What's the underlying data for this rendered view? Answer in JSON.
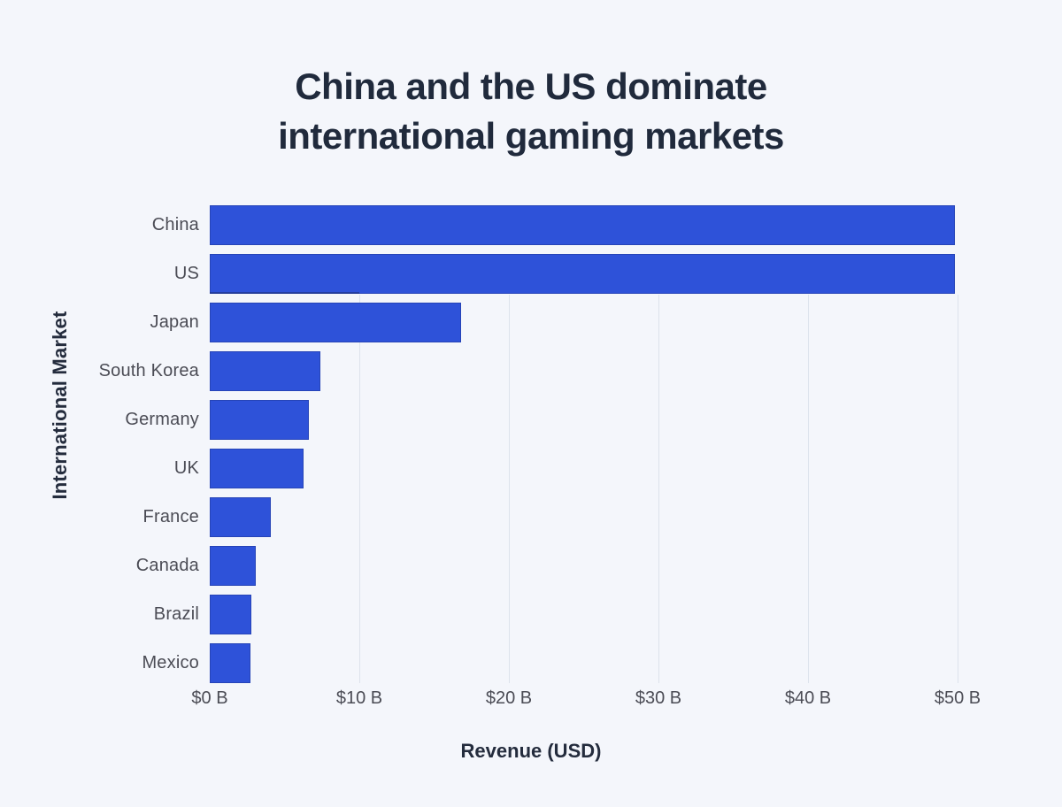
{
  "page": {
    "background_color": "#f4f6fb"
  },
  "chart_data": {
    "type": "bar",
    "orientation": "horizontal",
    "title": "China and the US dominate international gaming markets",
    "title_lines": [
      "China and the US dominate",
      "international gaming markets"
    ],
    "xlabel": "Revenue (USD)",
    "ylabel": "International Market",
    "categories": [
      "China",
      "US",
      "Japan",
      "South Korea",
      "Germany",
      "UK",
      "France",
      "Canada",
      "Brazil",
      "Mexico"
    ],
    "values": [
      49.8,
      49.8,
      16.8,
      7.4,
      6.6,
      6.3,
      4.1,
      3.1,
      2.8,
      2.7
    ],
    "x_ticks": [
      {
        "value": 0,
        "label": "$0 B"
      },
      {
        "value": 10,
        "label": "$10 B"
      },
      {
        "value": 20,
        "label": "$20 B"
      },
      {
        "value": 30,
        "label": "$30 B"
      },
      {
        "value": 40,
        "label": "$40 B"
      },
      {
        "value": 50,
        "label": "$50 B"
      }
    ],
    "xlim": [
      0,
      53.5
    ],
    "grid": "vertical-partial",
    "legend": "none",
    "bar_color": "#2e52d9",
    "gridline_color": "#dde3ec",
    "title_color": "#202a3c",
    "label_color": "#4b4c55"
  }
}
